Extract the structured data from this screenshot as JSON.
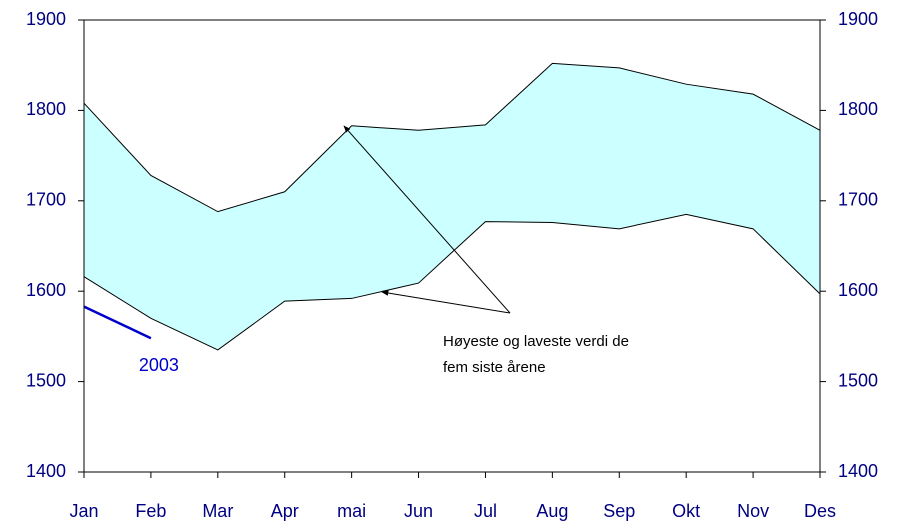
{
  "chart_data": {
    "type": "band-line",
    "categories": [
      "Jan",
      "Feb",
      "Mar",
      "Apr",
      "mai",
      "Jun",
      "Jul",
      "Aug",
      "Sep",
      "Okt",
      "Nov",
      "Des"
    ],
    "band": {
      "color": "#ccffff",
      "high": [
        1808,
        1728,
        1688,
        1710,
        1783,
        1778,
        1784,
        1852,
        1847,
        1829,
        1818,
        1778
      ],
      "low": [
        1616,
        1570,
        1535,
        1589,
        1592,
        1609,
        1677,
        1676,
        1669,
        1685,
        1669,
        1597
      ]
    },
    "series": [
      {
        "name": "2003",
        "color": "#0000cc",
        "values": [
          1583,
          1548,
          null,
          null,
          null,
          null,
          null,
          null,
          null,
          null,
          null,
          null
        ]
      }
    ],
    "annotation": [
      "Høyeste og laveste verdi de",
      "fem siste årene"
    ],
    "ylim": [
      1400,
      1900
    ],
    "yticks": [
      1400,
      1500,
      1600,
      1700,
      1800,
      1900
    ],
    "y2lim": [
      1400,
      1900
    ],
    "y2ticks": [
      1400,
      1500,
      1600,
      1700,
      1800,
      1900
    ]
  }
}
